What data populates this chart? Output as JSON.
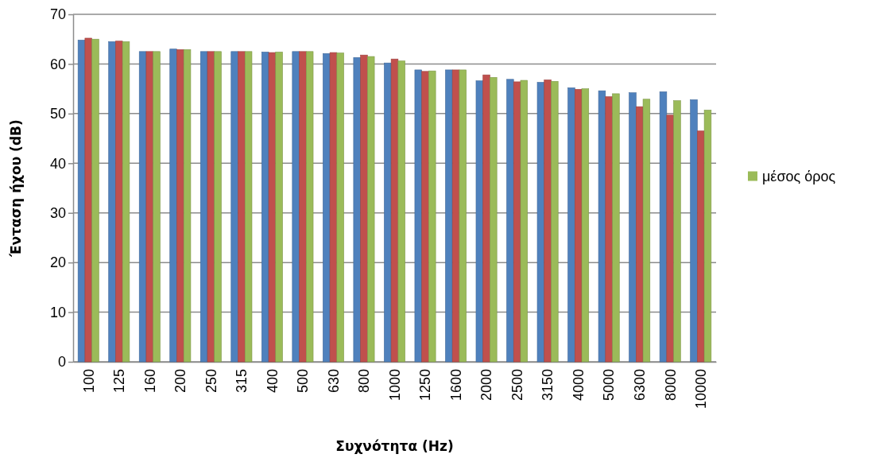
{
  "chart_data": {
    "type": "bar",
    "xlabel": "Συχνότητα (Hz)",
    "ylabel": "Ένταση ήχου (dB)",
    "categories": [
      "100",
      "125",
      "160",
      "200",
      "250",
      "315",
      "400",
      "500",
      "630",
      "800",
      "1000",
      "1250",
      "1600",
      "2000",
      "2500",
      "3150",
      "4000",
      "5000",
      "6300",
      "8000",
      "10000"
    ],
    "series": [
      {
        "color": "#4f81bd",
        "values": [
          64.8,
          64.5,
          62.5,
          63.0,
          62.5,
          62.5,
          62.4,
          62.5,
          62.1,
          61.3,
          60.2,
          58.8,
          58.8,
          56.6,
          56.9,
          56.3,
          55.2,
          54.6,
          54.2,
          54.4,
          52.8
        ]
      },
      {
        "color": "#c0504d",
        "values": [
          65.2,
          64.6,
          62.5,
          62.9,
          62.5,
          62.5,
          62.3,
          62.5,
          62.3,
          61.8,
          61.0,
          58.5,
          58.8,
          57.8,
          56.4,
          56.8,
          54.9,
          53.4,
          51.4,
          49.7,
          46.5
        ]
      },
      {
        "name": "μέσος όρος",
        "color": "#9bbb59",
        "values": [
          65.0,
          64.5,
          62.5,
          62.9,
          62.5,
          62.5,
          62.4,
          62.5,
          62.2,
          61.5,
          60.6,
          58.6,
          58.8,
          57.3,
          56.7,
          56.5,
          55.0,
          54.0,
          52.9,
          52.6,
          50.7
        ]
      }
    ],
    "ylim": [
      0,
      70
    ],
    "yticks": [
      0,
      10,
      20,
      30,
      40,
      50,
      60,
      70
    ],
    "grid": "y",
    "legend": "right"
  }
}
